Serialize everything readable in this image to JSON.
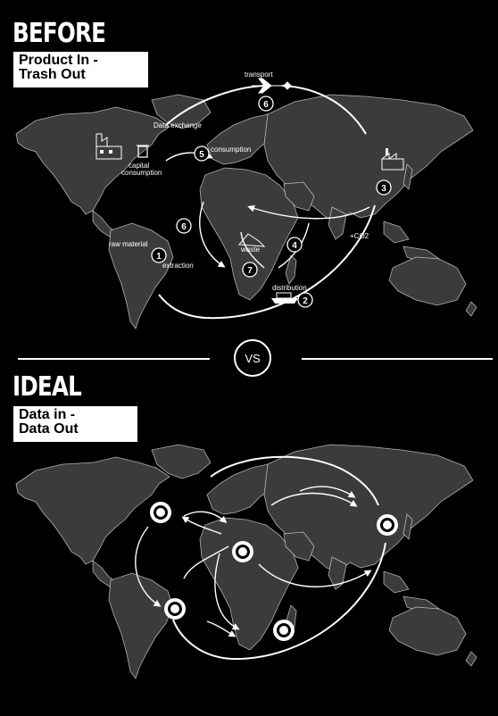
{
  "before": {
    "heading": "BEFORE",
    "box_line1": "Product In -",
    "box_line2": "Trash Out",
    "labels": {
      "transport": "transport",
      "data_exchange": "Data exchange",
      "consumption": "consumption",
      "capital_consumption_1": "capital",
      "capital_consumption_2": "consumption",
      "raw_material": "raw material",
      "extraction": "extraction",
      "waste": "waste",
      "distribution": "distribution",
      "co2": "+CO2"
    },
    "steps": {
      "transport": "6",
      "consumption": "5",
      "factory": "3",
      "return": "6",
      "waste_step": "4",
      "extraction": "1",
      "waste": "7",
      "distribution": "2"
    }
  },
  "vs_label": "VS",
  "ideal": {
    "heading": "IDEAL",
    "box_line1": "Data in -",
    "box_line2": "Data Out"
  }
}
